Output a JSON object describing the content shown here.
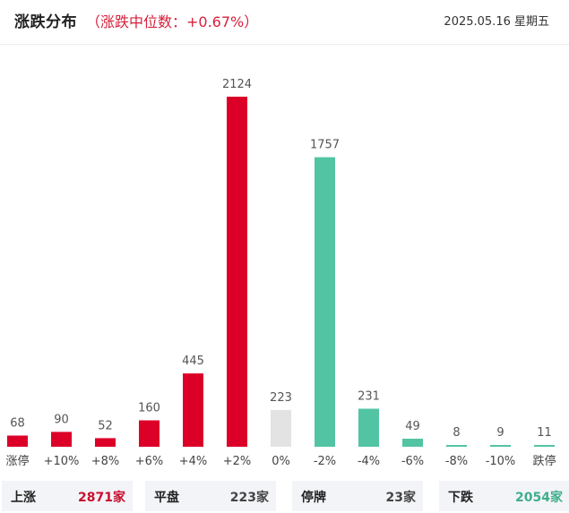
{
  "header": {
    "title": "涨跌分布",
    "subtitle": "（涨跌中位数：+0.67%）",
    "date": "2025.05.16 星期五"
  },
  "chart_data": {
    "type": "bar",
    "categories": [
      "涨停",
      "+10%",
      "+8%",
      "+6%",
      "+4%",
      "+2%",
      "0%",
      "-2%",
      "-4%",
      "-6%",
      "-8%",
      "-10%",
      "跌停"
    ],
    "values": [
      68,
      90,
      52,
      160,
      445,
      2124,
      223,
      1757,
      231,
      49,
      8,
      9,
      11
    ],
    "bar_colors": [
      "#dc0029",
      "#dc0029",
      "#dc0029",
      "#dc0029",
      "#dc0029",
      "#dc0029",
      "#e3e3e3",
      "#52c4a4",
      "#52c4a4",
      "#52c4a4",
      "#52c4a4",
      "#52c4a4",
      "#52c4a4"
    ],
    "ylim": [
      0,
      2124
    ],
    "grid": false,
    "data_labels": true
  },
  "stats": {
    "up": {
      "label": "上涨",
      "value": "2871家"
    },
    "flat": {
      "label": "平盘",
      "value": "223家"
    },
    "halted": {
      "label": "停牌",
      "value": "23家"
    },
    "down": {
      "label": "下跌",
      "value": "2054家"
    }
  }
}
